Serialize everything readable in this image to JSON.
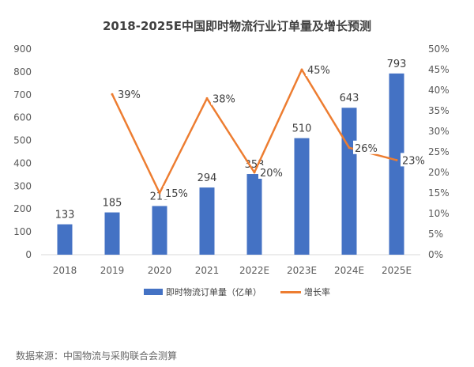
{
  "chart_data": {
    "type": "bar+line",
    "title": "2018-2025E中国即时物流行业订单量及增长预测",
    "categories": [
      "2018",
      "2019",
      "2020",
      "2021",
      "2022E",
      "2023E",
      "2024E",
      "2025E"
    ],
    "series": [
      {
        "name": "即时物流订单量（亿单）",
        "type": "bar",
        "axis": "left",
        "color": "#4472C4",
        "values": [
          133,
          185,
          213,
          294,
          353,
          510,
          643,
          793
        ],
        "labels": [
          "133",
          "185",
          "213",
          "294",
          "353",
          "510",
          "643",
          "793"
        ]
      },
      {
        "name": "增长率",
        "type": "line",
        "axis": "right",
        "color": "#ED7D31",
        "values": [
          null,
          39,
          15,
          38,
          20,
          45,
          26,
          23
        ],
        "labels": [
          "",
          "39%",
          "15%",
          "38%",
          "20%",
          "45%",
          "26%",
          "23%"
        ]
      }
    ],
    "y_left": {
      "range": [
        0,
        900
      ],
      "ticks": [
        "0",
        "100",
        "200",
        "300",
        "400",
        "500",
        "600",
        "700",
        "800",
        "900"
      ]
    },
    "y_right": {
      "range": [
        0,
        50
      ],
      "ticks": [
        "0%",
        "5%",
        "10%",
        "15%",
        "20%",
        "25%",
        "30%",
        "35%",
        "40%",
        "45%",
        "50%"
      ]
    },
    "grid": false,
    "legend_position": "bottom"
  },
  "legend": {
    "bar": "即时物流订单量（亿单）",
    "line": "增长率"
  },
  "source": "数据来源：中国物流与采购联合会测算"
}
